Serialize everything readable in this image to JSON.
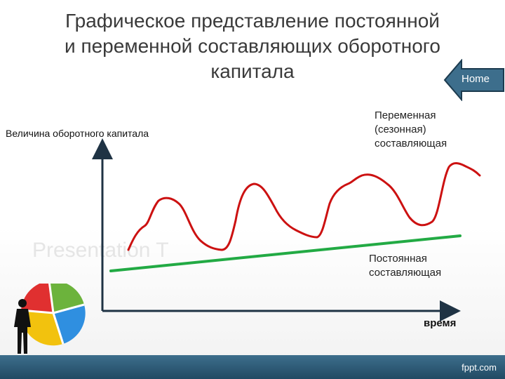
{
  "slide": {
    "title_lines": [
      "Графическое представление постоянной",
      "и переменной составляющих оборотного",
      "капитала"
    ],
    "home_label": "Home",
    "watermark": "Presentation T",
    "footer": "fppt.com"
  },
  "diagram": {
    "y_axis_label": "Величина оборотного капитала",
    "x_axis_label": "время",
    "variable_label_lines": [
      "Переменная",
      "(сезонная)",
      "составляющая"
    ],
    "constant_label_lines": [
      "Постоянная",
      "составляющая"
    ]
  },
  "colors": {
    "variable_line": "#cc1111",
    "constant_line": "#22aa44",
    "axis": "#1f3344",
    "home_button": "#3d6e8c",
    "bottom_bar": "#2a5874"
  },
  "icons": {
    "home": "arrow-left-home-icon",
    "logo": "puzzle-pie-businessman-icon"
  }
}
